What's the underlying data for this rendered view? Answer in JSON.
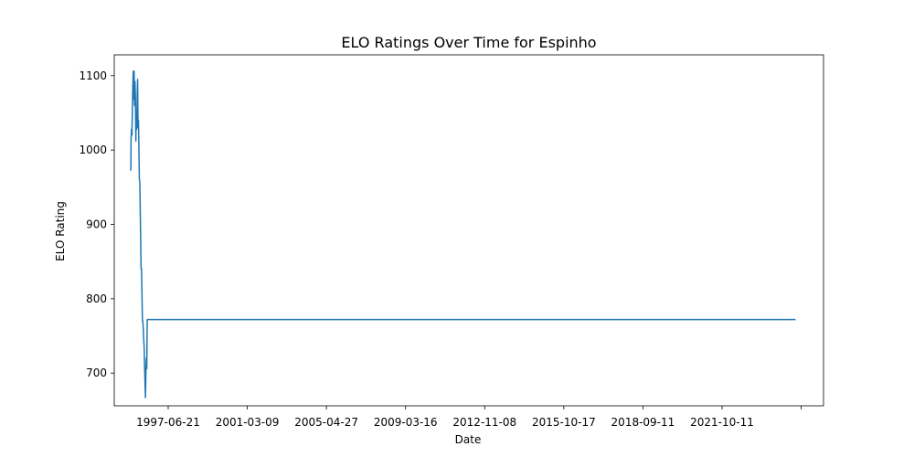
{
  "chart_data": {
    "type": "line",
    "title": "ELO Ratings Over Time for Espinho",
    "xlabel": "Date",
    "ylabel": "ELO Rating",
    "x_ticks": [
      "",
      "1997-06-21",
      "2001-03-09",
      "2005-04-27",
      "2009-03-16",
      "2012-11-08",
      "2015-10-17",
      "2018-09-11",
      "2021-10-11",
      ""
    ],
    "y_ticks": [
      700,
      800,
      900,
      1000,
      1100
    ],
    "ylim": [
      656,
      1128
    ],
    "grid": false,
    "legend": "none",
    "color": "#1f77b4",
    "series": [
      {
        "values": [
          [
            "1995-10-21",
            973
          ],
          [
            "1995-11-01",
            973
          ],
          [
            "1995-11-04",
            1014
          ],
          [
            "1995-11-11",
            1028
          ],
          [
            "1995-11-18",
            1020
          ],
          [
            "1995-11-25",
            1055
          ],
          [
            "1995-12-02",
            1085
          ],
          [
            "1995-12-09",
            1106
          ],
          [
            "1995-12-16",
            1068
          ],
          [
            "1995-12-23",
            1106
          ],
          [
            "1995-12-30",
            1060
          ],
          [
            "1996-01-06",
            1092
          ],
          [
            "1996-01-13",
            1072
          ],
          [
            "1996-01-20",
            1012
          ],
          [
            "1996-01-27",
            1050
          ],
          [
            "1996-02-03",
            1028
          ],
          [
            "1996-02-10",
            1070
          ],
          [
            "1996-02-17",
            1095
          ],
          [
            "1996-02-24",
            1030
          ],
          [
            "1996-03-02",
            1040
          ],
          [
            "1996-03-09",
            1000
          ],
          [
            "1996-03-16",
            960
          ],
          [
            "1996-03-23",
            958
          ],
          [
            "1996-03-30",
            920
          ],
          [
            "1996-04-06",
            880
          ],
          [
            "1996-04-13",
            840
          ],
          [
            "1996-04-20",
            840
          ],
          [
            "1996-04-27",
            806
          ],
          [
            "1996-05-04",
            770
          ],
          [
            "1996-05-11",
            770
          ],
          [
            "1996-05-18",
            760
          ],
          [
            "1996-05-25",
            745
          ],
          [
            "1996-06-01",
            735
          ],
          [
            "1996-06-08",
            708
          ],
          [
            "1996-06-15",
            686
          ],
          [
            "1996-06-22",
            667
          ],
          [
            "1996-06-29",
            700
          ],
          [
            "1996-07-06",
            720
          ],
          [
            "1996-07-13",
            706
          ],
          [
            "1996-07-20",
            772
          ],
          [
            "1997-06-21",
            772
          ],
          [
            "2025-01-01",
            772
          ]
        ]
      }
    ]
  }
}
